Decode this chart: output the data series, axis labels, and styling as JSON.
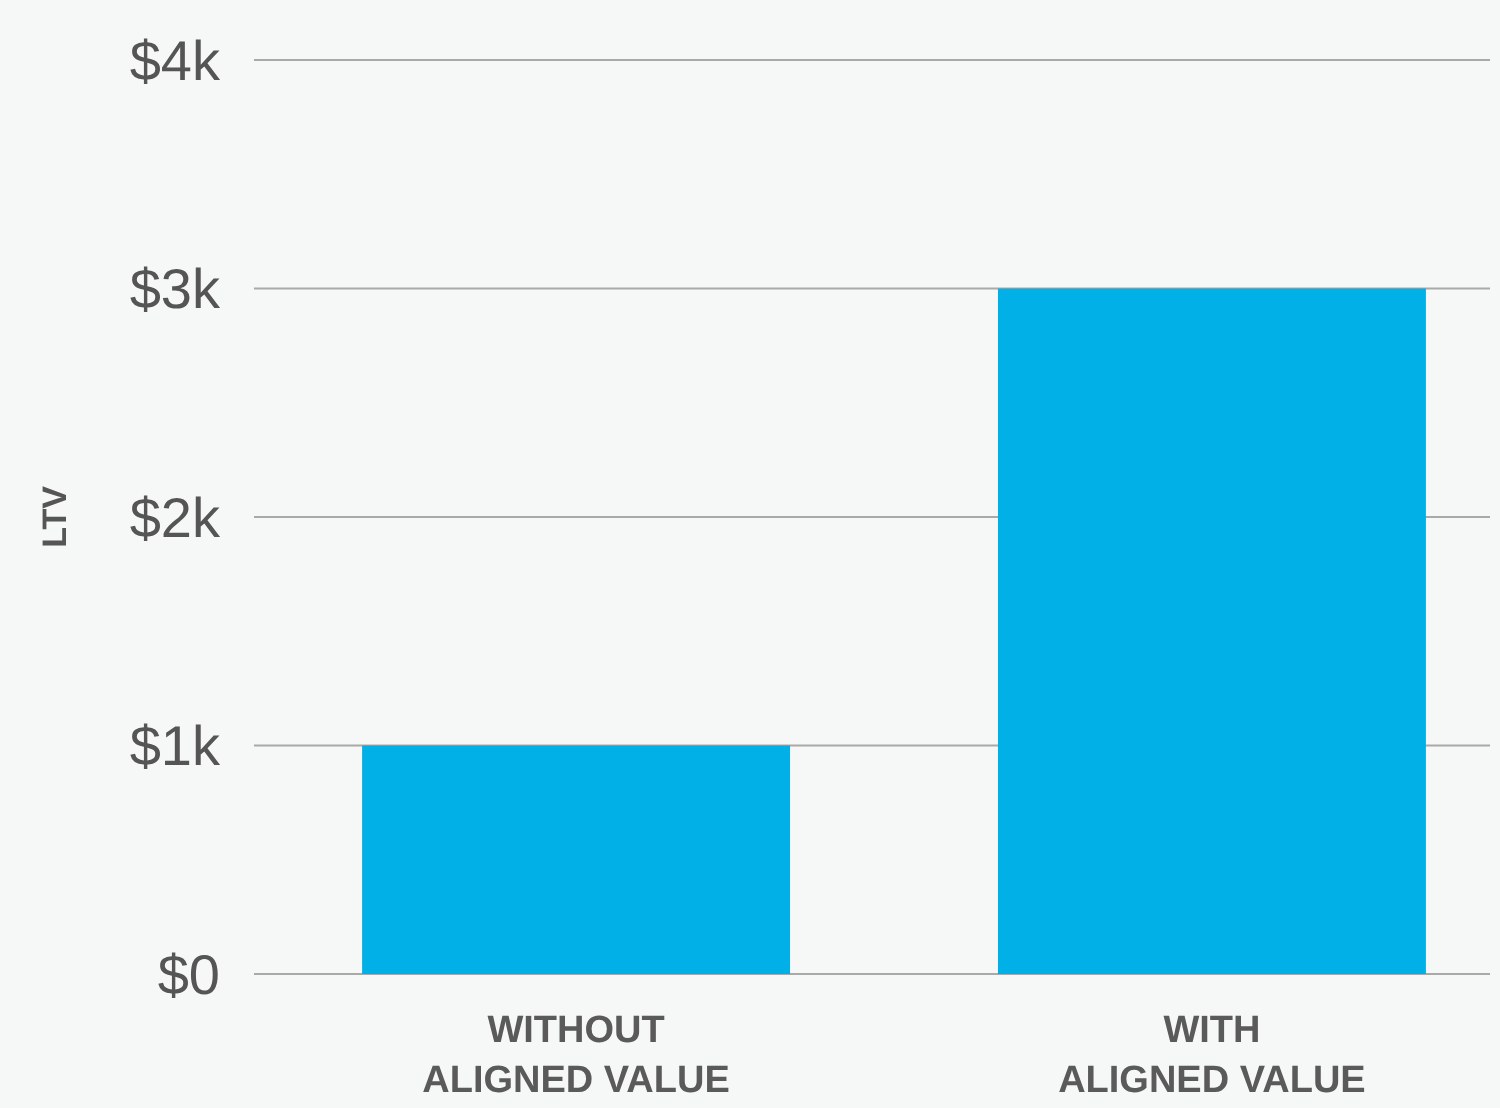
{
  "chart_data": {
    "type": "bar",
    "ylabel": "LTV",
    "categories": [
      "WITHOUT\nALIGNED VALUE",
      "WITH\nALIGNED VALUE"
    ],
    "values": [
      1000,
      3000
    ],
    "color": "#00b0e6",
    "ylim": [
      0,
      4000
    ],
    "yticks": [
      {
        "value": 0,
        "label": "$0"
      },
      {
        "value": 1000,
        "label": "$1k"
      },
      {
        "value": 2000,
        "label": "$2k"
      },
      {
        "value": 3000,
        "label": "$3k"
      },
      {
        "value": 4000,
        "label": "$4k"
      }
    ],
    "grid": "y"
  }
}
